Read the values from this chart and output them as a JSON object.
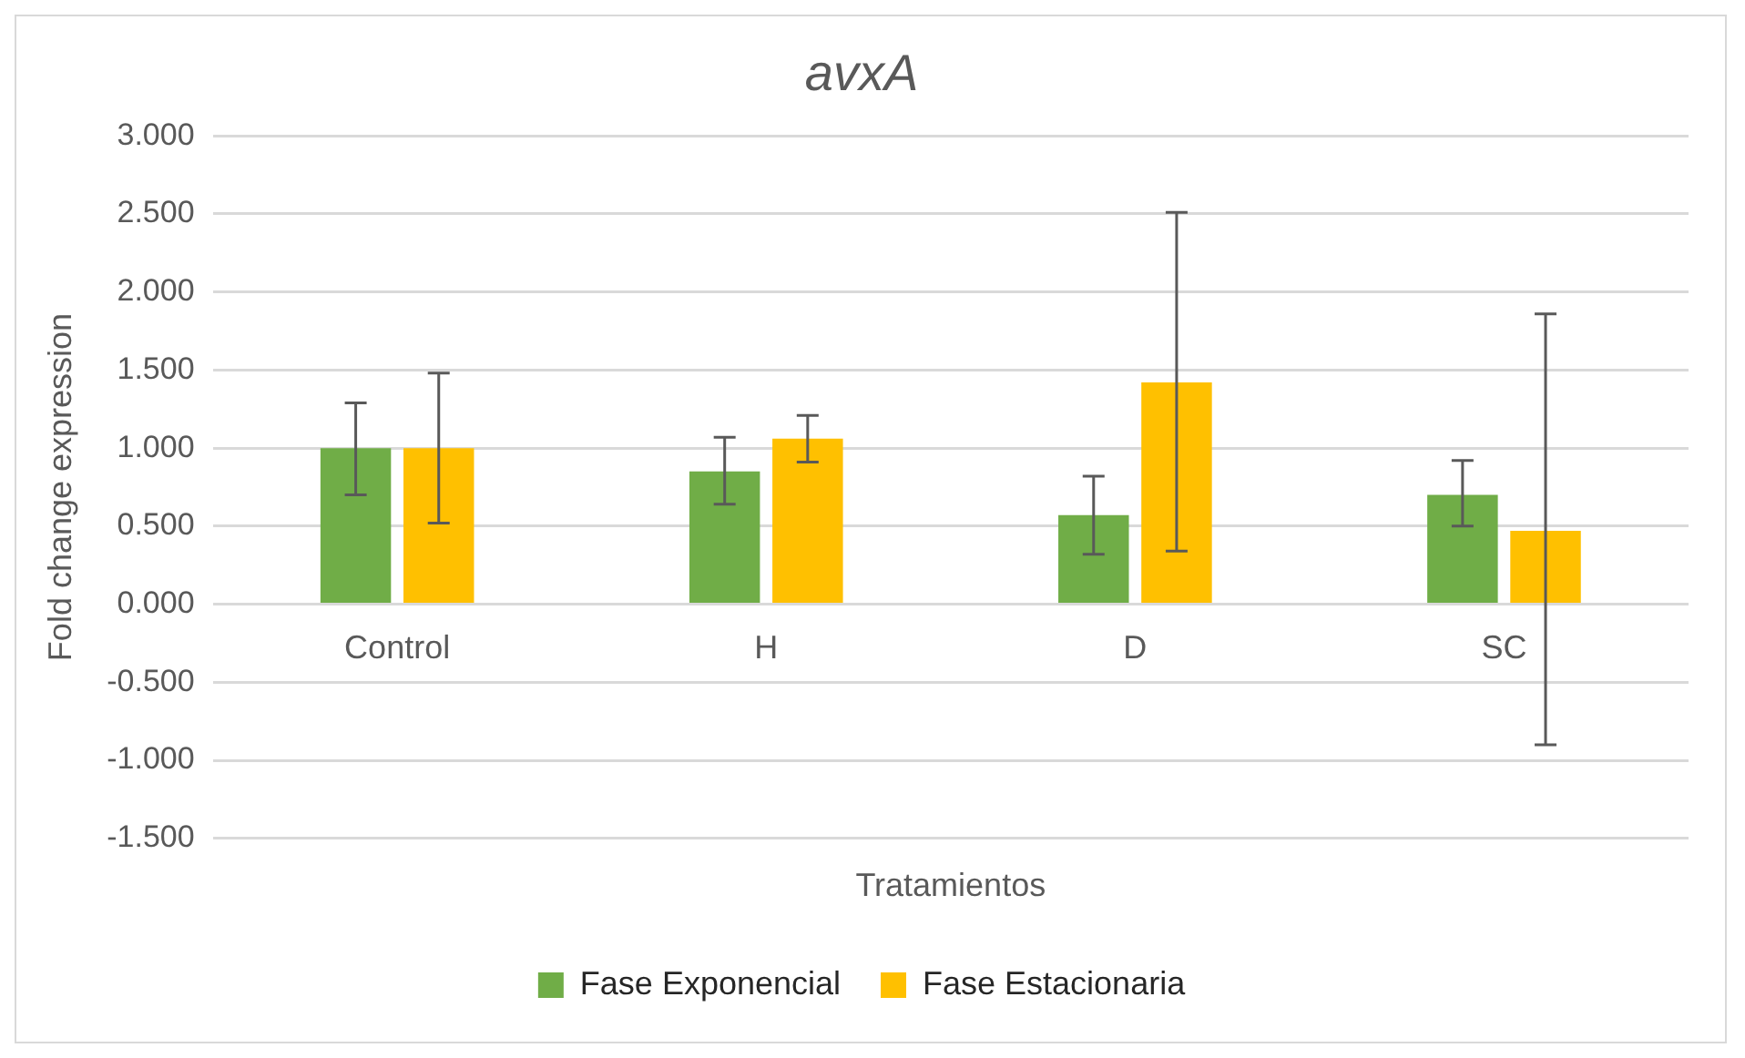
{
  "chart_data": {
    "type": "bar",
    "title": "avxA",
    "xlabel": "Tratamientos",
    "ylabel": "Fold change expression",
    "categories": [
      "Control",
      "H",
      "D",
      "SC"
    ],
    "series": [
      {
        "name": "Fase Exponencial",
        "color": "#70ad47",
        "values": [
          1.0,
          0.85,
          0.57,
          0.7
        ],
        "errors": [
          [
            0.7,
            1.29
          ],
          [
            0.64,
            1.07
          ],
          [
            0.32,
            0.82
          ],
          [
            0.5,
            0.92
          ]
        ]
      },
      {
        "name": "Fase Estacionaria",
        "color": "#ffc000",
        "values": [
          1.0,
          1.06,
          1.42,
          0.47
        ],
        "errors": [
          [
            0.52,
            1.48
          ],
          [
            0.91,
            1.21
          ],
          [
            0.34,
            2.51
          ],
          [
            -0.9,
            1.86
          ]
        ]
      }
    ],
    "ylim": [
      -1.5,
      3.0
    ],
    "yticks": [
      {
        "value": -1.5,
        "label": "-1.500"
      },
      {
        "value": -1.0,
        "label": "-1.000"
      },
      {
        "value": -0.5,
        "label": "-0.500"
      },
      {
        "value": 0,
        "label": "0.000"
      },
      {
        "value": 0.5,
        "label": "0.500"
      },
      {
        "value": 1.0,
        "label": "1.000"
      },
      {
        "value": 1.5,
        "label": "1.500"
      },
      {
        "value": 2.0,
        "label": "2.000"
      },
      {
        "value": 2.5,
        "label": "2.500"
      },
      {
        "value": 3.0,
        "label": "3.000"
      }
    ],
    "grid": "y",
    "legend": "bottom"
  }
}
